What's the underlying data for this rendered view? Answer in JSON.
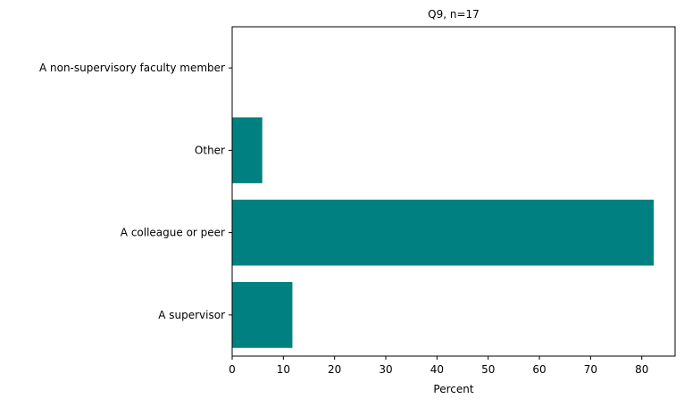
{
  "chart_data": {
    "type": "bar",
    "orientation": "horizontal",
    "title": "Q9, n=17",
    "xlabel": "Percent",
    "ylabel": "",
    "categories": [
      "A supervisor",
      "A colleague or peer",
      "Other",
      "A non-supervisory faculty member"
    ],
    "values": [
      11.76,
      82.35,
      5.88,
      0
    ],
    "xlim": [
      0,
      86.5
    ],
    "xticks": [
      0,
      10,
      20,
      30,
      40,
      50,
      60,
      70,
      80
    ],
    "grid": false,
    "legend": "none",
    "bar_color": "#008080"
  }
}
